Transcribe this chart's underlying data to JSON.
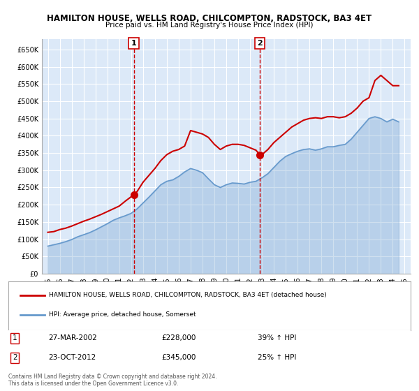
{
  "title": "HAMILTON HOUSE, WELLS ROAD, CHILCOMPTON, RADSTOCK, BA3 4ET",
  "subtitle": "Price paid vs. HM Land Registry's House Price Index (HPI)",
  "red_label": "HAMILTON HOUSE, WELLS ROAD, CHILCOMPTON, RADSTOCK, BA3 4ET (detached house)",
  "blue_label": "HPI: Average price, detached house, Somerset",
  "sale1_date": "27-MAR-2002",
  "sale1_price": "£228,000",
  "sale1_hpi": "39% ↑ HPI",
  "sale1_x": 2002.23,
  "sale1_y": 228000,
  "sale2_date": "23-OCT-2012",
  "sale2_price": "£345,000",
  "sale2_hpi": "25% ↑ HPI",
  "sale2_x": 2012.81,
  "sale2_y": 345000,
  "ylabel_ticks": [
    0,
    50000,
    100000,
    150000,
    200000,
    250000,
    300000,
    350000,
    400000,
    450000,
    500000,
    550000,
    600000,
    650000
  ],
  "ylabel_labels": [
    "£0",
    "£50K",
    "£100K",
    "£150K",
    "£200K",
    "£250K",
    "£300K",
    "£350K",
    "£400K",
    "£450K",
    "£500K",
    "£550K",
    "£600K",
    "£650K"
  ],
  "ylim": [
    0,
    680000
  ],
  "xlim_start": 1994.5,
  "xlim_end": 2025.5,
  "background_color": "#dce9f8",
  "plot_bg_color": "#dce9f8",
  "red_color": "#cc0000",
  "blue_color": "#6699cc",
  "grid_color": "#ffffff",
  "footnote": "Contains HM Land Registry data © Crown copyright and database right 2024.\nThis data is licensed under the Open Government Licence v3.0.",
  "red_x": [
    1995.0,
    1995.5,
    1996.0,
    1996.5,
    1997.0,
    1997.5,
    1998.0,
    1998.5,
    1999.0,
    1999.5,
    2000.0,
    2000.5,
    2001.0,
    2001.5,
    2002.0,
    2002.23,
    2002.5,
    2003.0,
    2003.5,
    2004.0,
    2004.5,
    2005.0,
    2005.5,
    2006.0,
    2006.5,
    2007.0,
    2007.5,
    2008.0,
    2008.5,
    2009.0,
    2009.5,
    2010.0,
    2010.5,
    2011.0,
    2011.5,
    2012.0,
    2012.5,
    2012.81,
    2013.0,
    2013.5,
    2014.0,
    2014.5,
    2015.0,
    2015.5,
    2016.0,
    2016.5,
    2017.0,
    2017.5,
    2018.0,
    2018.5,
    2019.0,
    2019.5,
    2020.0,
    2020.5,
    2021.0,
    2021.5,
    2022.0,
    2022.5,
    2023.0,
    2023.5,
    2024.0,
    2024.5
  ],
  "red_y": [
    120000,
    122000,
    128000,
    132000,
    138000,
    145000,
    152000,
    158000,
    165000,
    172000,
    180000,
    188000,
    196000,
    210000,
    223000,
    228000,
    238000,
    265000,
    285000,
    305000,
    328000,
    345000,
    355000,
    360000,
    370000,
    415000,
    410000,
    405000,
    395000,
    375000,
    360000,
    370000,
    375000,
    375000,
    372000,
    365000,
    358000,
    345000,
    345000,
    360000,
    380000,
    395000,
    410000,
    425000,
    435000,
    445000,
    450000,
    452000,
    450000,
    455000,
    455000,
    452000,
    455000,
    465000,
    480000,
    500000,
    510000,
    560000,
    575000,
    560000,
    545000,
    545000
  ],
  "blue_x": [
    1995.0,
    1995.5,
    1996.0,
    1996.5,
    1997.0,
    1997.5,
    1998.0,
    1998.5,
    1999.0,
    1999.5,
    2000.0,
    2000.5,
    2001.0,
    2001.5,
    2002.0,
    2002.5,
    2003.0,
    2003.5,
    2004.0,
    2004.5,
    2005.0,
    2005.5,
    2006.0,
    2006.5,
    2007.0,
    2007.5,
    2008.0,
    2008.5,
    2009.0,
    2009.5,
    2010.0,
    2010.5,
    2011.0,
    2011.5,
    2012.0,
    2012.5,
    2013.0,
    2013.5,
    2014.0,
    2014.5,
    2015.0,
    2015.5,
    2016.0,
    2016.5,
    2017.0,
    2017.5,
    2018.0,
    2018.5,
    2019.0,
    2019.5,
    2020.0,
    2020.5,
    2021.0,
    2021.5,
    2022.0,
    2022.5,
    2023.0,
    2023.5,
    2024.0,
    2024.5
  ],
  "blue_y": [
    80000,
    84000,
    88000,
    93000,
    99000,
    107000,
    113000,
    119000,
    127000,
    136000,
    145000,
    155000,
    162000,
    168000,
    175000,
    188000,
    205000,
    222000,
    240000,
    258000,
    268000,
    272000,
    282000,
    295000,
    305000,
    300000,
    293000,
    275000,
    258000,
    250000,
    258000,
    263000,
    262000,
    260000,
    265000,
    268000,
    278000,
    290000,
    308000,
    326000,
    340000,
    348000,
    355000,
    360000,
    362000,
    358000,
    362000,
    368000,
    368000,
    372000,
    375000,
    390000,
    410000,
    430000,
    450000,
    455000,
    450000,
    440000,
    448000,
    440000
  ]
}
